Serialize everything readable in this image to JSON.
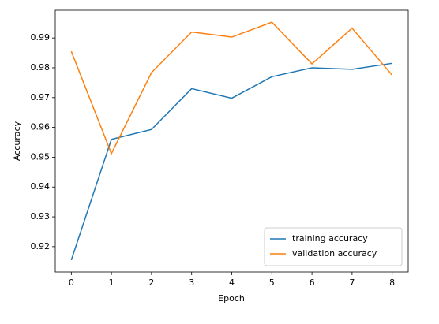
{
  "chart_data": {
    "type": "line",
    "x_label": "Epoch",
    "y_label": "Accuracy",
    "x": [
      0,
      1,
      2,
      3,
      4,
      5,
      6,
      7,
      8
    ],
    "series": [
      {
        "name": "training accuracy",
        "color": "#1f77b4",
        "values": [
          0.9155,
          0.956,
          0.9593,
          0.973,
          0.9698,
          0.977,
          0.98,
          0.9795,
          0.9815
        ]
      },
      {
        "name": "validation accuracy",
        "color": "#ff7f0e",
        "values": [
          0.9855,
          0.9512,
          0.9784,
          0.992,
          0.9903,
          0.9953,
          0.9813,
          0.9933,
          0.9775
        ]
      }
    ],
    "xlim": [
      -0.4,
      8.4
    ],
    "xticks": [
      0,
      1,
      2,
      3,
      4,
      5,
      6,
      7,
      8
    ],
    "ylim": [
      0.9115,
      0.9993
    ],
    "yticks": [
      0.92,
      0.93,
      0.94,
      0.95,
      0.96,
      0.97,
      0.98,
      0.99
    ],
    "legend": "lower right",
    "grid": false
  }
}
